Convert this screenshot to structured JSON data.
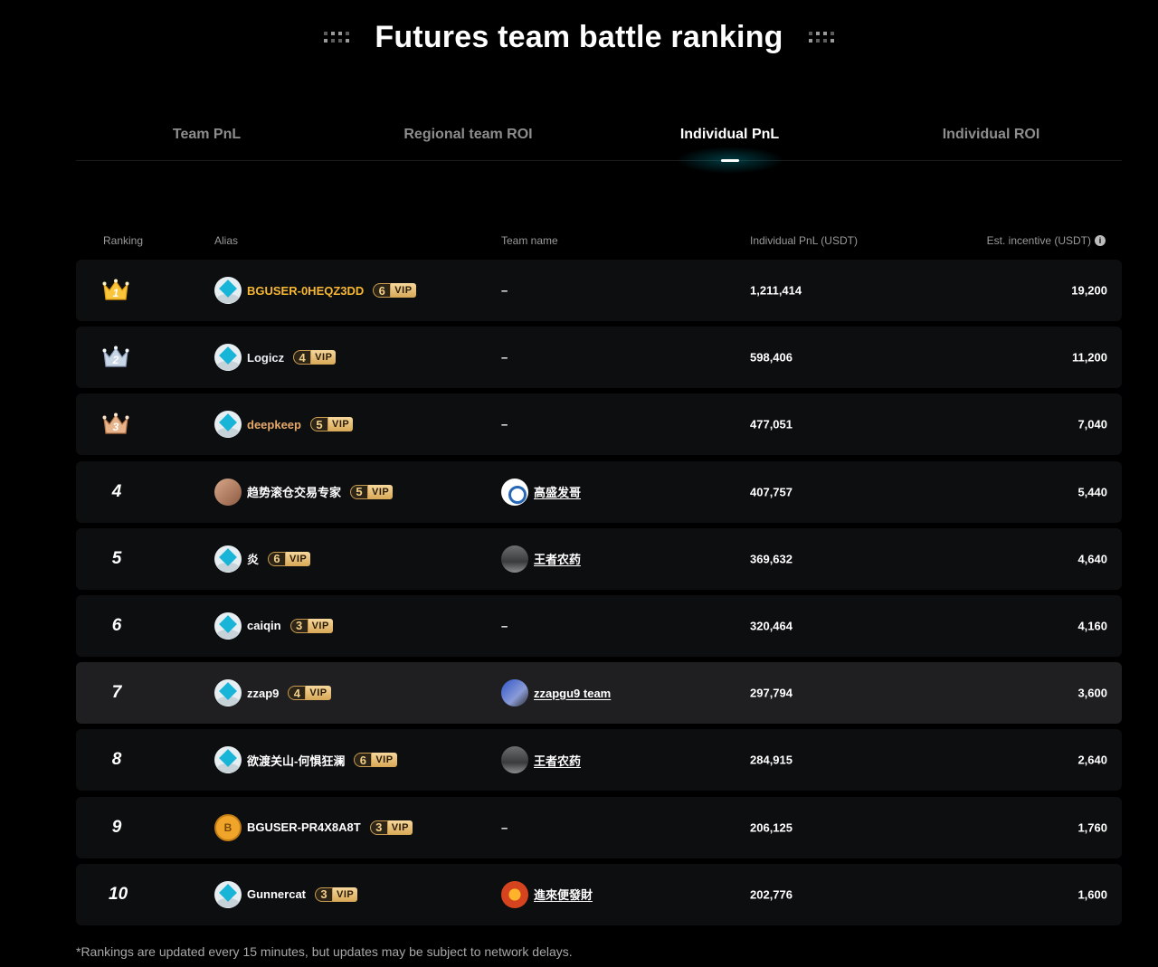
{
  "page": {
    "title": "Futures team battle ranking"
  },
  "tabs": [
    {
      "label": "Team PnL",
      "active": false
    },
    {
      "label": "Regional team ROI",
      "active": false
    },
    {
      "label": "Individual PnL",
      "active": true
    },
    {
      "label": "Individual ROI",
      "active": false
    }
  ],
  "table": {
    "headers": {
      "ranking": "Ranking",
      "alias": "Alias",
      "team": "Team name",
      "pnl": "Individual PnL (USDT)",
      "incentive": "Est. incentive (USDT)"
    },
    "info_icon": "info-icon",
    "rows": [
      {
        "rank": "1",
        "medal": "gold-crown-icon",
        "alias": "BGUSER-0HEQZ3DD",
        "alias_color": "gold",
        "vip_level": "6",
        "vip_label": "VIP",
        "team": "–",
        "pnl": "1,211,414",
        "incentive": "19,200"
      },
      {
        "rank": "2",
        "medal": "silver-crown-icon",
        "alias": "Logicz",
        "alias_color": "silver",
        "vip_level": "4",
        "vip_label": "VIP",
        "team": "–",
        "pnl": "598,406",
        "incentive": "11,200"
      },
      {
        "rank": "3",
        "medal": "bronze-crown-icon",
        "alias": "deepkeep",
        "alias_color": "bronze",
        "vip_level": "5",
        "vip_label": "VIP",
        "team": "–",
        "pnl": "477,051",
        "incentive": "7,040"
      },
      {
        "rank": "4",
        "alias": "趋势滚仓交易专家",
        "vip_level": "5",
        "vip_label": "VIP",
        "team": "高盛发哥",
        "pnl": "407,757",
        "incentive": "5,440"
      },
      {
        "rank": "5",
        "alias": "炎",
        "vip_level": "6",
        "vip_label": "VIP",
        "team": "王者农药",
        "pnl": "369,632",
        "incentive": "4,640"
      },
      {
        "rank": "6",
        "alias": "caiqin",
        "vip_level": "3",
        "vip_label": "VIP",
        "team": "–",
        "pnl": "320,464",
        "incentive": "4,160"
      },
      {
        "rank": "7",
        "alias": "zzap9",
        "vip_level": "4",
        "vip_label": "VIP",
        "team": "zzapgu9 team",
        "pnl": "297,794",
        "incentive": "3,600",
        "highlighted": true
      },
      {
        "rank": "8",
        "alias": "欲渡关山-何惧狂澜",
        "vip_level": "6",
        "vip_label": "VIP",
        "team": "王者农药",
        "pnl": "284,915",
        "incentive": "2,640"
      },
      {
        "rank": "9",
        "alias": "BGUSER-PR4X8A8T",
        "vip_level": "3",
        "vip_label": "VIP",
        "team": "–",
        "pnl": "206,125",
        "incentive": "1,760"
      },
      {
        "rank": "10",
        "alias": "Gunnercat",
        "vip_level": "3",
        "vip_label": "VIP",
        "team": "進來便發財",
        "pnl": "202,776",
        "incentive": "1,600"
      }
    ]
  },
  "footnote": "*Rankings are updated every 15 minutes, but updates may be subject to network delays.",
  "colors": {
    "background": "#000000",
    "row_bg": "#0d0e0f",
    "row_highlight": "#1f1f21",
    "gold": "#f7b731",
    "accent_glow": "#00aabe"
  }
}
